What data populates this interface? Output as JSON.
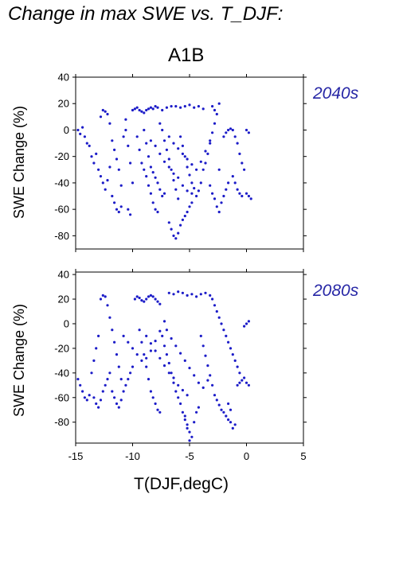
{
  "header": {
    "title": "Change in max SWE vs. T_DJF:",
    "scenario": "A1B"
  },
  "panels": [
    {
      "period": "2040s",
      "ylabel": "SWE Change (%)"
    },
    {
      "period": "2080s",
      "ylabel": "SWE Change (%)"
    }
  ],
  "xlabel": "T(DJF,degC)",
  "colors": {
    "points": "#1c1cc8",
    "period_text": "#2727a6",
    "axis": "#000000"
  },
  "chart_data": [
    {
      "type": "scatter",
      "title": "A1B",
      "annotation": "2040s",
      "xlabel": "",
      "ylabel": "SWE Change (%)",
      "xlim": [
        -15,
        5
      ],
      "ylim": [
        -90,
        40
      ],
      "xticks": [
        -15,
        -10,
        -5,
        0,
        5
      ],
      "yticks": [
        -80,
        -60,
        -40,
        -20,
        0,
        20,
        40
      ],
      "grid": false,
      "points": [
        [
          -14.8,
          0
        ],
        [
          -14.6,
          -3
        ],
        [
          -14.4,
          2
        ],
        [
          -14.2,
          -5
        ],
        [
          -14.0,
          -10
        ],
        [
          -13.8,
          -12
        ],
        [
          -13.6,
          -20
        ],
        [
          -13.4,
          -25
        ],
        [
          -13.2,
          -18
        ],
        [
          -13.0,
          -30
        ],
        [
          -12.8,
          -35
        ],
        [
          -12.6,
          -40
        ],
        [
          -12.4,
          -45
        ],
        [
          -12.2,
          -38
        ],
        [
          -12.0,
          -28
        ],
        [
          -12.8,
          10
        ],
        [
          -12.6,
          15
        ],
        [
          -12.4,
          14
        ],
        [
          -12.2,
          12
        ],
        [
          -12.0,
          5
        ],
        [
          -11.8,
          -8
        ],
        [
          -11.6,
          -15
        ],
        [
          -11.4,
          -22
        ],
        [
          -11.2,
          -30
        ],
        [
          -11.0,
          -42
        ],
        [
          -11.8,
          -50
        ],
        [
          -11.6,
          -55
        ],
        [
          -11.4,
          -60
        ],
        [
          -11.2,
          -62
        ],
        [
          -11.0,
          -58
        ],
        [
          -10.8,
          -5
        ],
        [
          -10.6,
          0
        ],
        [
          -10.4,
          -12
        ],
        [
          -10.2,
          -25
        ],
        [
          -10.0,
          -40
        ],
        [
          -10.4,
          -60
        ],
        [
          -10.2,
          -64
        ],
        [
          -10.6,
          8
        ],
        [
          -10.0,
          15
        ],
        [
          -9.8,
          16
        ],
        [
          -9.6,
          17
        ],
        [
          -9.4,
          15
        ],
        [
          -9.2,
          14
        ],
        [
          -9.0,
          13
        ],
        [
          -8.8,
          15
        ],
        [
          -8.6,
          16
        ],
        [
          -8.4,
          17
        ],
        [
          -8.2,
          16
        ],
        [
          -8.0,
          18
        ],
        [
          -7.8,
          17
        ],
        [
          -9.6,
          -5
        ],
        [
          -9.4,
          -15
        ],
        [
          -9.2,
          -25
        ],
        [
          -9.0,
          -30
        ],
        [
          -8.8,
          -35
        ],
        [
          -8.6,
          -42
        ],
        [
          -8.4,
          -48
        ],
        [
          -8.2,
          -55
        ],
        [
          -8.0,
          -60
        ],
        [
          -7.8,
          -62
        ],
        [
          -9.0,
          0
        ],
        [
          -8.8,
          -10
        ],
        [
          -8.6,
          -20
        ],
        [
          -8.4,
          -28
        ],
        [
          -8.2,
          -32
        ],
        [
          -8.0,
          -36
        ],
        [
          -7.8,
          -40
        ],
        [
          -7.6,
          -45
        ],
        [
          -7.4,
          -50
        ],
        [
          -7.2,
          -48
        ],
        [
          -7.6,
          5
        ],
        [
          -7.4,
          0
        ],
        [
          -7.2,
          -8
        ],
        [
          -7.0,
          -15
        ],
        [
          -6.8,
          -22
        ],
        [
          -6.6,
          -30
        ],
        [
          -6.4,
          -38
        ],
        [
          -6.2,
          -45
        ],
        [
          -6.0,
          -52
        ],
        [
          -6.8,
          -70
        ],
        [
          -6.6,
          -75
        ],
        [
          -6.4,
          -80
        ],
        [
          -6.2,
          -82
        ],
        [
          -6.0,
          -78
        ],
        [
          -5.8,
          -72
        ],
        [
          -5.6,
          -68
        ],
        [
          -5.4,
          -65
        ],
        [
          -5.2,
          -62
        ],
        [
          -5.0,
          -58
        ],
        [
          -4.8,
          -55
        ],
        [
          -7.4,
          15
        ],
        [
          -7.0,
          17
        ],
        [
          -6.6,
          18
        ],
        [
          -6.2,
          18
        ],
        [
          -5.8,
          17
        ],
        [
          -5.4,
          18
        ],
        [
          -5.0,
          19
        ],
        [
          -4.6,
          17
        ],
        [
          -4.2,
          18
        ],
        [
          -3.8,
          16
        ],
        [
          -5.8,
          -5
        ],
        [
          -5.6,
          -12
        ],
        [
          -5.4,
          -20
        ],
        [
          -5.2,
          -28
        ],
        [
          -5.0,
          -34
        ],
        [
          -4.8,
          -40
        ],
        [
          -4.6,
          -44
        ],
        [
          -4.4,
          -50
        ],
        [
          -4.2,
          -46
        ],
        [
          -4.0,
          -40
        ],
        [
          -3.8,
          -30
        ],
        [
          -3.6,
          -25
        ],
        [
          -3.4,
          -18
        ],
        [
          -3.2,
          -10
        ],
        [
          -3.0,
          -2
        ],
        [
          -2.8,
          5
        ],
        [
          -2.6,
          12
        ],
        [
          -2.4,
          20
        ],
        [
          -2.8,
          15
        ],
        [
          -3.0,
          18
        ],
        [
          -3.2,
          -42
        ],
        [
          -3.0,
          -48
        ],
        [
          -2.8,
          -52
        ],
        [
          -2.6,
          -58
        ],
        [
          -2.4,
          -62
        ],
        [
          -2.2,
          -55
        ],
        [
          -2.0,
          -50
        ],
        [
          -1.8,
          -45
        ],
        [
          -1.6,
          -40
        ],
        [
          -2.4,
          -30
        ],
        [
          -2.0,
          -5
        ],
        [
          -1.8,
          -2
        ],
        [
          -1.6,
          0
        ],
        [
          -1.4,
          1
        ],
        [
          -1.2,
          0
        ],
        [
          -1.0,
          -5
        ],
        [
          -0.8,
          -10
        ],
        [
          -0.6,
          -18
        ],
        [
          -0.4,
          -25
        ],
        [
          -0.2,
          -30
        ],
        [
          -1.2,
          -35
        ],
        [
          -1.0,
          -40
        ],
        [
          -0.8,
          -45
        ],
        [
          -0.6,
          -48
        ],
        [
          -0.4,
          -50
        ],
        [
          0.0,
          -48
        ],
        [
          0.2,
          -50
        ],
        [
          0.4,
          -52
        ],
        [
          0.0,
          0
        ],
        [
          0.2,
          -2
        ],
        [
          -6.8,
          -5
        ],
        [
          -6.4,
          -10
        ],
        [
          -6.0,
          -14
        ],
        [
          -5.6,
          -18
        ],
        [
          -5.2,
          -22
        ],
        [
          -4.8,
          -26
        ],
        [
          -4.4,
          -30
        ],
        [
          -4.0,
          -24
        ],
        [
          -3.6,
          -16
        ],
        [
          -3.2,
          -8
        ],
        [
          -8.4,
          -8
        ],
        [
          -8.0,
          -12
        ],
        [
          -7.6,
          -18
        ],
        [
          -7.2,
          -24
        ],
        [
          -6.8,
          -28
        ],
        [
          -6.4,
          -33
        ],
        [
          -6.0,
          -36
        ],
        [
          -5.6,
          -42
        ],
        [
          -5.2,
          -46
        ],
        [
          -4.8,
          -48
        ]
      ]
    },
    {
      "type": "scatter",
      "annotation": "2080s",
      "xlabel": "T(DJF,degC)",
      "ylabel": "SWE Change (%)",
      "xlim": [
        -15,
        5
      ],
      "ylim": [
        -97,
        42
      ],
      "xticks": [
        -15,
        -10,
        -5,
        0,
        5
      ],
      "yticks": [
        -80,
        -60,
        -40,
        -20,
        0,
        20,
        40
      ],
      "grid": false,
      "points": [
        [
          -14.8,
          -45
        ],
        [
          -14.6,
          -50
        ],
        [
          -14.4,
          -55
        ],
        [
          -14.2,
          -60
        ],
        [
          -14.0,
          -62
        ],
        [
          -13.8,
          -58
        ],
        [
          -13.6,
          -40
        ],
        [
          -13.4,
          -30
        ],
        [
          -13.2,
          -20
        ],
        [
          -13.0,
          -10
        ],
        [
          -12.8,
          20
        ],
        [
          -12.6,
          23
        ],
        [
          -12.4,
          22
        ],
        [
          -12.2,
          15
        ],
        [
          -12.0,
          5
        ],
        [
          -11.8,
          -5
        ],
        [
          -11.6,
          -15
        ],
        [
          -11.4,
          -25
        ],
        [
          -11.2,
          -35
        ],
        [
          -11.0,
          -45
        ],
        [
          -13.4,
          -60
        ],
        [
          -13.2,
          -65
        ],
        [
          -13.0,
          -68
        ],
        [
          -12.8,
          -62
        ],
        [
          -12.6,
          -55
        ],
        [
          -12.4,
          -50
        ],
        [
          -12.2,
          -45
        ],
        [
          -12.0,
          -40
        ],
        [
          -11.8,
          -55
        ],
        [
          -11.6,
          -60
        ],
        [
          -11.4,
          -65
        ],
        [
          -11.2,
          -68
        ],
        [
          -11.0,
          -62
        ],
        [
          -10.8,
          -55
        ],
        [
          -10.6,
          -50
        ],
        [
          -10.4,
          -45
        ],
        [
          -10.2,
          -40
        ],
        [
          -10.0,
          -35
        ],
        [
          -9.8,
          20
        ],
        [
          -9.6,
          22
        ],
        [
          -9.4,
          21
        ],
        [
          -9.2,
          19
        ],
        [
          -9.0,
          18
        ],
        [
          -8.8,
          20
        ],
        [
          -8.6,
          22
        ],
        [
          -8.4,
          23
        ],
        [
          -8.2,
          22
        ],
        [
          -8.0,
          20
        ],
        [
          -7.8,
          18
        ],
        [
          -7.6,
          16
        ],
        [
          -9.4,
          -5
        ],
        [
          -9.2,
          -15
        ],
        [
          -9.0,
          -25
        ],
        [
          -8.8,
          -35
        ],
        [
          -8.6,
          -45
        ],
        [
          -8.4,
          -55
        ],
        [
          -8.2,
          -60
        ],
        [
          -8.0,
          -65
        ],
        [
          -7.8,
          -70
        ],
        [
          -7.6,
          -72
        ],
        [
          -7.4,
          -10
        ],
        [
          -7.2,
          -18
        ],
        [
          -7.0,
          -25
        ],
        [
          -6.8,
          -32
        ],
        [
          -6.6,
          -40
        ],
        [
          -6.4,
          -48
        ],
        [
          -6.2,
          -55
        ],
        [
          -6.0,
          -60
        ],
        [
          -5.8,
          -65
        ],
        [
          -5.6,
          -72
        ],
        [
          -5.4,
          -78
        ],
        [
          -5.2,
          -82
        ],
        [
          -5.0,
          -88
        ],
        [
          -4.8,
          -92
        ],
        [
          -5.0,
          -95
        ],
        [
          -5.2,
          -85
        ],
        [
          -5.4,
          -75
        ],
        [
          -4.6,
          -80
        ],
        [
          -4.4,
          -72
        ],
        [
          -4.2,
          -68
        ],
        [
          -6.8,
          25
        ],
        [
          -6.4,
          24
        ],
        [
          -6.0,
          26
        ],
        [
          -5.6,
          25
        ],
        [
          -5.2,
          23
        ],
        [
          -4.8,
          24
        ],
        [
          -4.4,
          22
        ],
        [
          -4.0,
          24
        ],
        [
          -3.6,
          25
        ],
        [
          -3.2,
          23
        ],
        [
          -3.0,
          20
        ],
        [
          -2.8,
          15
        ],
        [
          -2.6,
          10
        ],
        [
          -2.4,
          5
        ],
        [
          -2.2,
          0
        ],
        [
          -2.0,
          -5
        ],
        [
          -1.8,
          -10
        ],
        [
          -1.6,
          -15
        ],
        [
          -1.4,
          -20
        ],
        [
          -1.2,
          -25
        ],
        [
          -4.0,
          -10
        ],
        [
          -3.8,
          -18
        ],
        [
          -3.6,
          -26
        ],
        [
          -3.4,
          -34
        ],
        [
          -3.2,
          -42
        ],
        [
          -3.0,
          -50
        ],
        [
          -2.8,
          -58
        ],
        [
          -2.6,
          -62
        ],
        [
          -2.4,
          -66
        ],
        [
          -2.2,
          -70
        ],
        [
          -2.0,
          -72
        ],
        [
          -1.8,
          -75
        ],
        [
          -1.6,
          -78
        ],
        [
          -1.4,
          -80
        ],
        [
          -1.2,
          -85
        ],
        [
          -1.0,
          -82
        ],
        [
          -1.4,
          -70
        ],
        [
          -1.6,
          -65
        ],
        [
          -0.8,
          -50
        ],
        [
          -0.6,
          -48
        ],
        [
          -0.4,
          -46
        ],
        [
          -0.2,
          -44
        ],
        [
          0.0,
          -48
        ],
        [
          0.2,
          -50
        ],
        [
          -0.8,
          -35
        ],
        [
          -1.0,
          -30
        ],
        [
          -0.6,
          -40
        ],
        [
          0.0,
          0
        ],
        [
          0.2,
          2
        ],
        [
          -0.2,
          -2
        ],
        [
          -7.0,
          -5
        ],
        [
          -6.6,
          -12
        ],
        [
          -6.2,
          -18
        ],
        [
          -5.8,
          -24
        ],
        [
          -5.4,
          -30
        ],
        [
          -5.0,
          -36
        ],
        [
          -4.6,
          -42
        ],
        [
          -4.2,
          -48
        ],
        [
          -3.8,
          -52
        ],
        [
          -3.4,
          -46
        ],
        [
          -8.8,
          -10
        ],
        [
          -8.4,
          -16
        ],
        [
          -8.0,
          -22
        ],
        [
          -7.6,
          -28
        ],
        [
          -7.2,
          -34
        ],
        [
          -6.8,
          -40
        ],
        [
          -6.4,
          -44
        ],
        [
          -6.0,
          -50
        ],
        [
          -5.6,
          -54
        ],
        [
          -5.2,
          -58
        ],
        [
          -10.8,
          -10
        ],
        [
          -10.4,
          -15
        ],
        [
          -10.0,
          -20
        ],
        [
          -9.6,
          -25
        ],
        [
          -9.2,
          -30
        ],
        [
          -8.8,
          -28
        ],
        [
          -8.4,
          -22
        ],
        [
          -8.0,
          -14
        ],
        [
          -7.6,
          -6
        ],
        [
          -7.2,
          2
        ]
      ]
    }
  ]
}
